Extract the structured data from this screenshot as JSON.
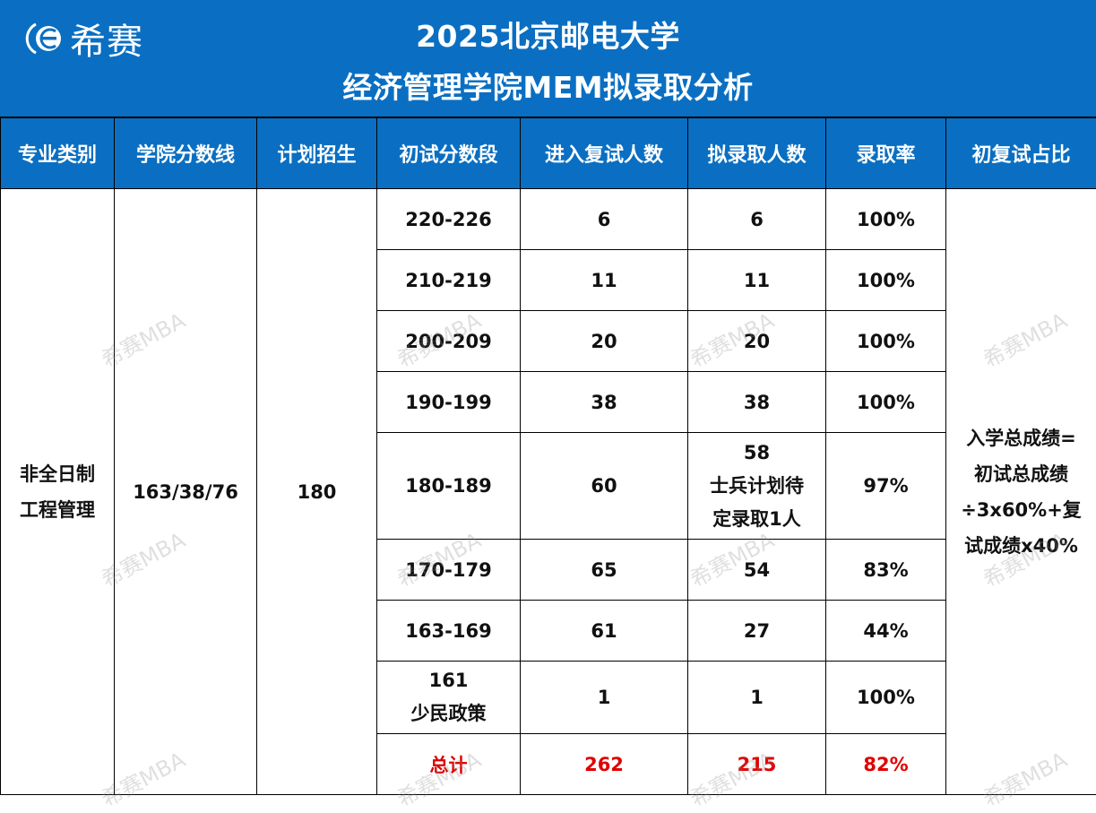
{
  "header": {
    "logo_text": "希赛",
    "title_line1": "2025北京邮电大学",
    "title_line2": "经济管理学院MEM拟录取分析"
  },
  "colors": {
    "header_bg": "#0a6fc2",
    "total_red": "#e00000"
  },
  "table": {
    "columns": [
      "专业类别",
      "学院分数线",
      "计划招生",
      "初试分数段",
      "进入复试人数",
      "拟录取人数",
      "录取率",
      "初复试占比"
    ],
    "major_line1": "非全日制",
    "major_line2": "工程管理",
    "score_line": "163/38/76",
    "plan": "180",
    "ratio_lines": [
      "入学总成绩=",
      "初试总成绩",
      "÷3x60%+复",
      "试成绩x40%"
    ],
    "rows": [
      {
        "range": "220-226",
        "retest": "6",
        "admitted": "6",
        "rate": "100%"
      },
      {
        "range": "210-219",
        "retest": "11",
        "admitted": "11",
        "rate": "100%"
      },
      {
        "range": "200-209",
        "retest": "20",
        "admitted": "20",
        "rate": "100%"
      },
      {
        "range": "190-199",
        "retest": "38",
        "admitted": "38",
        "rate": "100%"
      },
      {
        "range": "180-189",
        "retest": "60",
        "admitted_lines": [
          "58",
          "士兵计划待",
          "定录取1人"
        ],
        "rate": "97%"
      },
      {
        "range": "170-179",
        "retest": "65",
        "admitted": "54",
        "rate": "83%"
      },
      {
        "range": "163-169",
        "retest": "61",
        "admitted": "27",
        "rate": "44%"
      },
      {
        "range_lines": [
          "161",
          "少民政策"
        ],
        "retest": "1",
        "admitted": "1",
        "rate": "100%"
      }
    ],
    "total": {
      "label": "总计",
      "retest": "262",
      "admitted": "215",
      "rate": "82%"
    }
  },
  "watermark": "希赛MBA"
}
